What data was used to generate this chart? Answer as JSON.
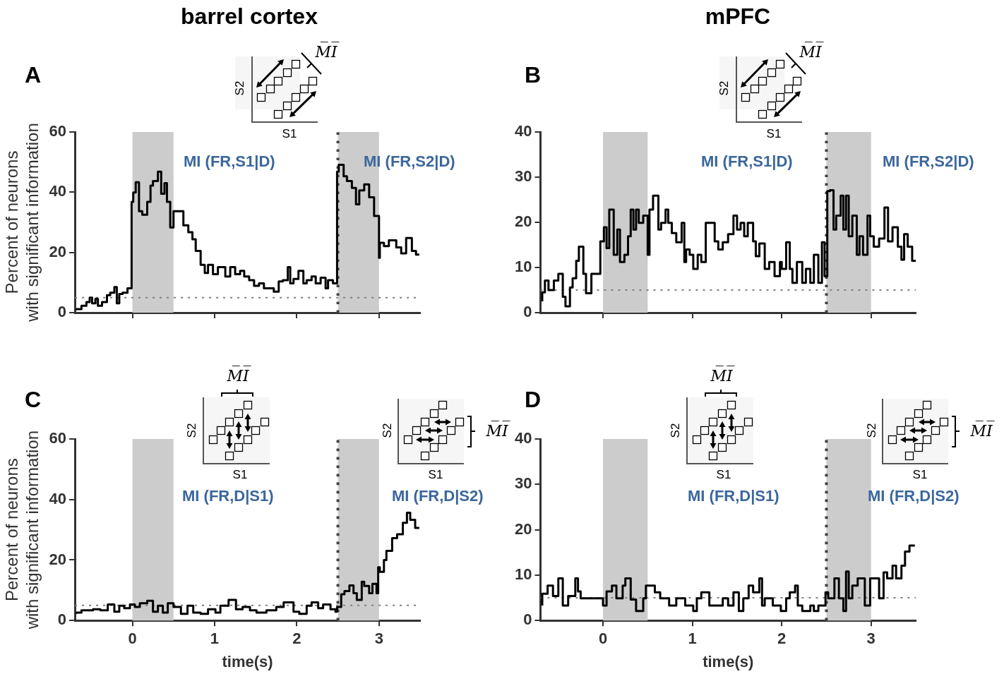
{
  "chart_data": [
    {
      "type": "step",
      "title": "A",
      "subtitle": "barrel cortex",
      "ylabel": "Percent of neurons\nwith significant information",
      "xlim": [
        -0.7,
        3.5
      ],
      "xticks": [
        0,
        1,
        2,
        3
      ],
      "ylim": [
        0,
        60
      ],
      "yticks": [
        0,
        20,
        40,
        60
      ],
      "tick_labels": "y",
      "grid": false,
      "marker": "none",
      "series": [
        {
          "color": "#000000",
          "x": [
            -0.68,
            -0.62,
            -0.56,
            -0.52,
            -0.49,
            -0.45,
            -0.42,
            -0.37,
            -0.31,
            -0.27,
            -0.22,
            -0.19,
            -0.16,
            -0.12,
            -0.06,
            -0.01,
            0.01,
            0.04,
            0.08,
            0.12,
            0.18,
            0.22,
            0.25,
            0.31,
            0.35,
            0.39,
            0.42,
            0.46,
            0.5,
            0.55,
            0.62,
            0.68,
            0.73,
            0.77,
            0.83,
            0.88,
            0.92,
            0.98,
            1.04,
            1.13,
            1.19,
            1.25,
            1.31,
            1.36,
            1.42,
            1.48,
            1.54,
            1.6,
            1.66,
            1.72,
            1.78,
            1.83,
            1.89,
            1.92,
            1.96,
            2.02,
            2.08,
            2.12,
            2.18,
            2.23,
            2.29,
            2.35,
            2.38,
            2.44,
            2.49,
            2.51,
            2.57,
            2.61,
            2.67,
            2.72,
            2.76,
            2.82,
            2.88,
            2.94,
            3.0,
            3.01,
            3.06,
            3.12,
            3.21,
            3.27,
            3.33,
            3.4,
            3.45,
            3.49
          ],
          "values": [
            0.8,
            1.2,
            2.3,
            3.5,
            5.0,
            3.1,
            4.6,
            2.3,
            3.5,
            5.8,
            6.6,
            8.5,
            3.1,
            6.2,
            6.6,
            8.1,
            36.8,
            39.9,
            43.3,
            33.7,
            32.5,
            36.8,
            42.2,
            43.7,
            46.8,
            39.5,
            43.0,
            36.8,
            28.3,
            33.7,
            33.7,
            29.0,
            26.7,
            24.4,
            20.5,
            15.9,
            13.2,
            15.9,
            12.8,
            15.1,
            12.0,
            15.1,
            12.8,
            13.9,
            12.0,
            10.8,
            8.9,
            9.7,
            8.1,
            8.1,
            7.0,
            10.4,
            10.8,
            15.1,
            9.7,
            11.2,
            13.9,
            9.7,
            10.8,
            12.0,
            9.7,
            11.6,
            8.1,
            10.8,
            9.7,
            46.8,
            49.1,
            45.3,
            43.7,
            41.4,
            36.0,
            40.6,
            42.6,
            38.3,
            32.1,
            18.2,
            23.2,
            22.1,
            24.0,
            21.7,
            19.7,
            24.8,
            20.5,
            19.3
          ]
        }
      ],
      "bands": [
        {
          "axis": "x",
          "from": 0,
          "to": 0.5,
          "color": "#cccccc"
        },
        {
          "axis": "x",
          "from": 2.5,
          "to": 3,
          "color": "#cccccc"
        }
      ],
      "ref_lines": [
        {
          "axis": "y",
          "value": 5,
          "color": "#808080",
          "line_style": "dotted"
        },
        {
          "axis": "x",
          "value": 2.5,
          "color": "#404040",
          "line_style": "dotted"
        }
      ],
      "annotations": [
        "S2",
        "S1",
        "M̅I̅",
        "MI (FR,S1|D)",
        "MI (FR,S2|D)"
      ]
    },
    {
      "type": "step",
      "title": "B",
      "subtitle": "mPFC",
      "xlim": [
        -0.7,
        3.5
      ],
      "xticks": [
        0,
        1,
        2,
        3
      ],
      "ylim": [
        0,
        40
      ],
      "yticks": [
        0,
        10,
        20,
        30,
        40
      ],
      "tick_labels": "y",
      "grid": false,
      "marker": "none",
      "series": [
        {
          "color": "#000000",
          "x": [
            -0.68,
            -0.65,
            -0.61,
            -0.55,
            -0.5,
            -0.45,
            -0.42,
            -0.37,
            -0.34,
            -0.3,
            -0.27,
            -0.22,
            -0.19,
            -0.13,
            -0.07,
            -0.03,
            0.01,
            0.04,
            0.07,
            0.12,
            0.16,
            0.19,
            0.24,
            0.28,
            0.31,
            0.34,
            0.37,
            0.4,
            0.45,
            0.5,
            0.52,
            0.56,
            0.62,
            0.65,
            0.7,
            0.73,
            0.77,
            0.82,
            0.88,
            0.91,
            0.93,
            0.97,
            1.01,
            1.06,
            1.1,
            1.15,
            1.19,
            1.25,
            1.29,
            1.34,
            1.4,
            1.46,
            1.5,
            1.54,
            1.58,
            1.62,
            1.68,
            1.71,
            1.75,
            1.81,
            1.86,
            1.92,
            1.98,
            2.0,
            2.05,
            2.09,
            2.12,
            2.17,
            2.23,
            2.27,
            2.32,
            2.36,
            2.41,
            2.45,
            2.48,
            2.51,
            2.54,
            2.58,
            2.61,
            2.66,
            2.69,
            2.72,
            2.75,
            2.79,
            2.84,
            2.87,
            2.91,
            2.96,
            2.99,
            3.03,
            3.09,
            3.15,
            3.19,
            3.24,
            3.3,
            3.34,
            3.37,
            3.41,
            3.46,
            3.5
          ],
          "values": [
            2.5,
            4.5,
            7.1,
            5.0,
            7.1,
            8.6,
            3.5,
            1.4,
            5.6,
            7.6,
            11.5,
            14.6,
            8.6,
            4.3,
            8.6,
            8.6,
            15.8,
            18.9,
            14.3,
            22.8,
            12.8,
            18.4,
            11.2,
            12.8,
            16.9,
            22.8,
            18.4,
            22.8,
            19.9,
            21.5,
            12.8,
            22.8,
            25.9,
            18.4,
            19.9,
            22.8,
            19.9,
            17.6,
            15.6,
            19.9,
            11.2,
            14.0,
            12.8,
            9.7,
            12.8,
            11.2,
            19.9,
            19.9,
            15.8,
            14.0,
            15.6,
            17.4,
            21.5,
            18.4,
            19.9,
            16.9,
            19.9,
            15.8,
            12.5,
            15.3,
            9.7,
            11.2,
            8.1,
            11.2,
            9.7,
            15.6,
            9.7,
            6.6,
            11.2,
            6.6,
            9.7,
            6.6,
            12.8,
            6.6,
            15.6,
            8.1,
            26.9,
            27.1,
            18.4,
            21.5,
            25.9,
            18.4,
            25.9,
            16.9,
            21.5,
            12.8,
            16.9,
            12.8,
            21.5,
            16.9,
            14.6,
            16.4,
            23.3,
            15.8,
            18.9,
            14.6,
            11.7,
            17.4,
            14.6,
            11.5
          ]
        }
      ],
      "bands": [
        {
          "axis": "x",
          "from": 0,
          "to": 0.5,
          "color": "#cccccc"
        },
        {
          "axis": "x",
          "from": 2.5,
          "to": 3,
          "color": "#cccccc"
        }
      ],
      "ref_lines": [
        {
          "axis": "y",
          "value": 5,
          "color": "#808080",
          "line_style": "dotted"
        },
        {
          "axis": "x",
          "value": 2.5,
          "color": "#404040",
          "line_style": "dotted"
        }
      ],
      "annotations": [
        "S2",
        "S1",
        "M̅I̅",
        "MI (FR,S1|D)",
        "MI (FR,S2|D)"
      ]
    },
    {
      "type": "step",
      "title": "C",
      "xlabel": "time(s)",
      "ylabel": "Percent of neurons\nwith significant information",
      "xlim": [
        -0.7,
        3.5
      ],
      "xticks": [
        0,
        1,
        2,
        3
      ],
      "ylim": [
        0,
        60
      ],
      "yticks": [
        0,
        20,
        40,
        60
      ],
      "grid": false,
      "marker": "none",
      "series": [
        {
          "color": "#000000",
          "x": [
            -0.68,
            -0.62,
            -0.55,
            -0.48,
            -0.39,
            -0.3,
            -0.22,
            -0.16,
            -0.1,
            -0.03,
            0.03,
            0.09,
            0.18,
            0.25,
            0.31,
            0.37,
            0.43,
            0.5,
            0.59,
            0.67,
            0.74,
            0.83,
            0.92,
            1.01,
            1.07,
            1.17,
            1.26,
            1.34,
            1.43,
            1.51,
            1.63,
            1.75,
            1.84,
            1.96,
            2.03,
            2.12,
            2.18,
            2.26,
            2.32,
            2.41,
            2.47,
            2.49,
            2.54,
            2.58,
            2.64,
            2.69,
            2.73,
            2.79,
            2.82,
            2.88,
            2.92,
            2.97,
            2.99,
            3.01,
            3.06,
            3.09,
            3.16,
            3.22,
            3.29,
            3.34,
            3.38,
            3.44,
            3.49
          ],
          "values": [
            2.2,
            2.6,
            3.4,
            3.4,
            3.7,
            3.4,
            5.3,
            2.9,
            4.9,
            4.1,
            5.3,
            4.5,
            5.7,
            6.5,
            2.9,
            4.9,
            2.6,
            5.7,
            4.5,
            2.2,
            4.9,
            2.6,
            2.2,
            3.7,
            2.6,
            4.9,
            6.8,
            3.7,
            4.5,
            3.4,
            2.6,
            3.4,
            4.5,
            6.0,
            2.9,
            2.2,
            4.9,
            6.0,
            4.1,
            5.3,
            3.7,
            2.9,
            4.5,
            8.7,
            9.7,
            11.6,
            9.0,
            6.8,
            12.8,
            11.4,
            9.0,
            12.1,
            9.0,
            17.6,
            16.1,
            20.0,
            23.0,
            27.2,
            28.5,
            32.3,
            35.6,
            33.3,
            30.6
          ]
        }
      ],
      "bands": [
        {
          "axis": "x",
          "from": 0,
          "to": 0.5,
          "color": "#cccccc"
        },
        {
          "axis": "x",
          "from": 2.5,
          "to": 3,
          "color": "#cccccc"
        }
      ],
      "ref_lines": [
        {
          "axis": "y",
          "value": 5,
          "color": "#808080",
          "line_style": "dotted"
        },
        {
          "axis": "x",
          "value": 2.5,
          "color": "#404040",
          "line_style": "dotted"
        }
      ],
      "annotations": [
        "S2",
        "S1",
        "M̅I̅",
        "S2",
        "S1",
        "M̅I̅",
        "MI (FR,D|S1)",
        "MI (FR,D|S2)"
      ]
    },
    {
      "type": "step",
      "title": "D",
      "xlabel": "time(s)",
      "xlim": [
        -0.7,
        3.5
      ],
      "xticks": [
        0,
        1,
        2,
        3
      ],
      "ylim": [
        0,
        40
      ],
      "yticks": [
        0,
        10,
        20,
        30,
        40
      ],
      "grid": false,
      "marker": "none",
      "series": [
        {
          "color": "#000000",
          "x": [
            -0.68,
            -0.62,
            -0.56,
            -0.5,
            -0.45,
            -0.39,
            -0.31,
            -0.28,
            -0.25,
            -0.15,
            0.0,
            0.04,
            0.1,
            0.15,
            0.22,
            0.25,
            0.31,
            0.37,
            0.45,
            0.48,
            0.58,
            0.64,
            0.74,
            0.82,
            0.92,
            1.01,
            1.05,
            1.1,
            1.19,
            1.25,
            1.34,
            1.4,
            1.46,
            1.52,
            1.57,
            1.63,
            1.68,
            1.75,
            1.78,
            1.81,
            1.9,
            1.99,
            2.05,
            2.09,
            2.15,
            2.18,
            2.23,
            2.32,
            2.36,
            2.41,
            2.49,
            2.52,
            2.59,
            2.64,
            2.69,
            2.72,
            2.75,
            2.79,
            2.85,
            2.93,
            2.99,
            3.04,
            3.09,
            3.14,
            3.18,
            3.24,
            3.28,
            3.34,
            3.38,
            3.43,
            3.49
          ],
          "values": [
            3.3,
            5.9,
            7.7,
            5.4,
            9.3,
            3.3,
            5.4,
            9.3,
            6.4,
            4.9,
            4.9,
            3.3,
            6.4,
            7.7,
            4.9,
            7.7,
            9.3,
            4.6,
            2.1,
            4.9,
            7.7,
            6.2,
            4.9,
            3.3,
            4.9,
            3.3,
            2.1,
            4.9,
            6.2,
            3.3,
            3.3,
            4.9,
            3.3,
            6.2,
            2.1,
            4.9,
            7.7,
            6.2,
            9.3,
            3.3,
            4.9,
            3.3,
            2.1,
            4.9,
            6.2,
            7.7,
            3.3,
            2.1,
            3.3,
            2.1,
            3.3,
            6.2,
            4.9,
            9.3,
            4.9,
            2.1,
            10.8,
            4.9,
            7.7,
            9.3,
            3.3,
            9.3,
            9.3,
            4.9,
            10.6,
            9.3,
            12.1,
            9.3,
            12.1,
            15.2,
            16.5
          ]
        }
      ],
      "bands": [
        {
          "axis": "x",
          "from": 0,
          "to": 0.5,
          "color": "#cccccc"
        },
        {
          "axis": "x",
          "from": 2.5,
          "to": 3,
          "color": "#cccccc"
        }
      ],
      "ref_lines": [
        {
          "axis": "y",
          "value": 5,
          "color": "#808080",
          "line_style": "dotted"
        },
        {
          "axis": "x",
          "value": 2.5,
          "color": "#404040",
          "line_style": "dotted"
        }
      ],
      "annotations": [
        "S2",
        "S1",
        "M̅I̅",
        "S2",
        "S1",
        "M̅I̅",
        "MI (FR,D|S1)",
        "MI (FR,D|S2)"
      ]
    }
  ]
}
